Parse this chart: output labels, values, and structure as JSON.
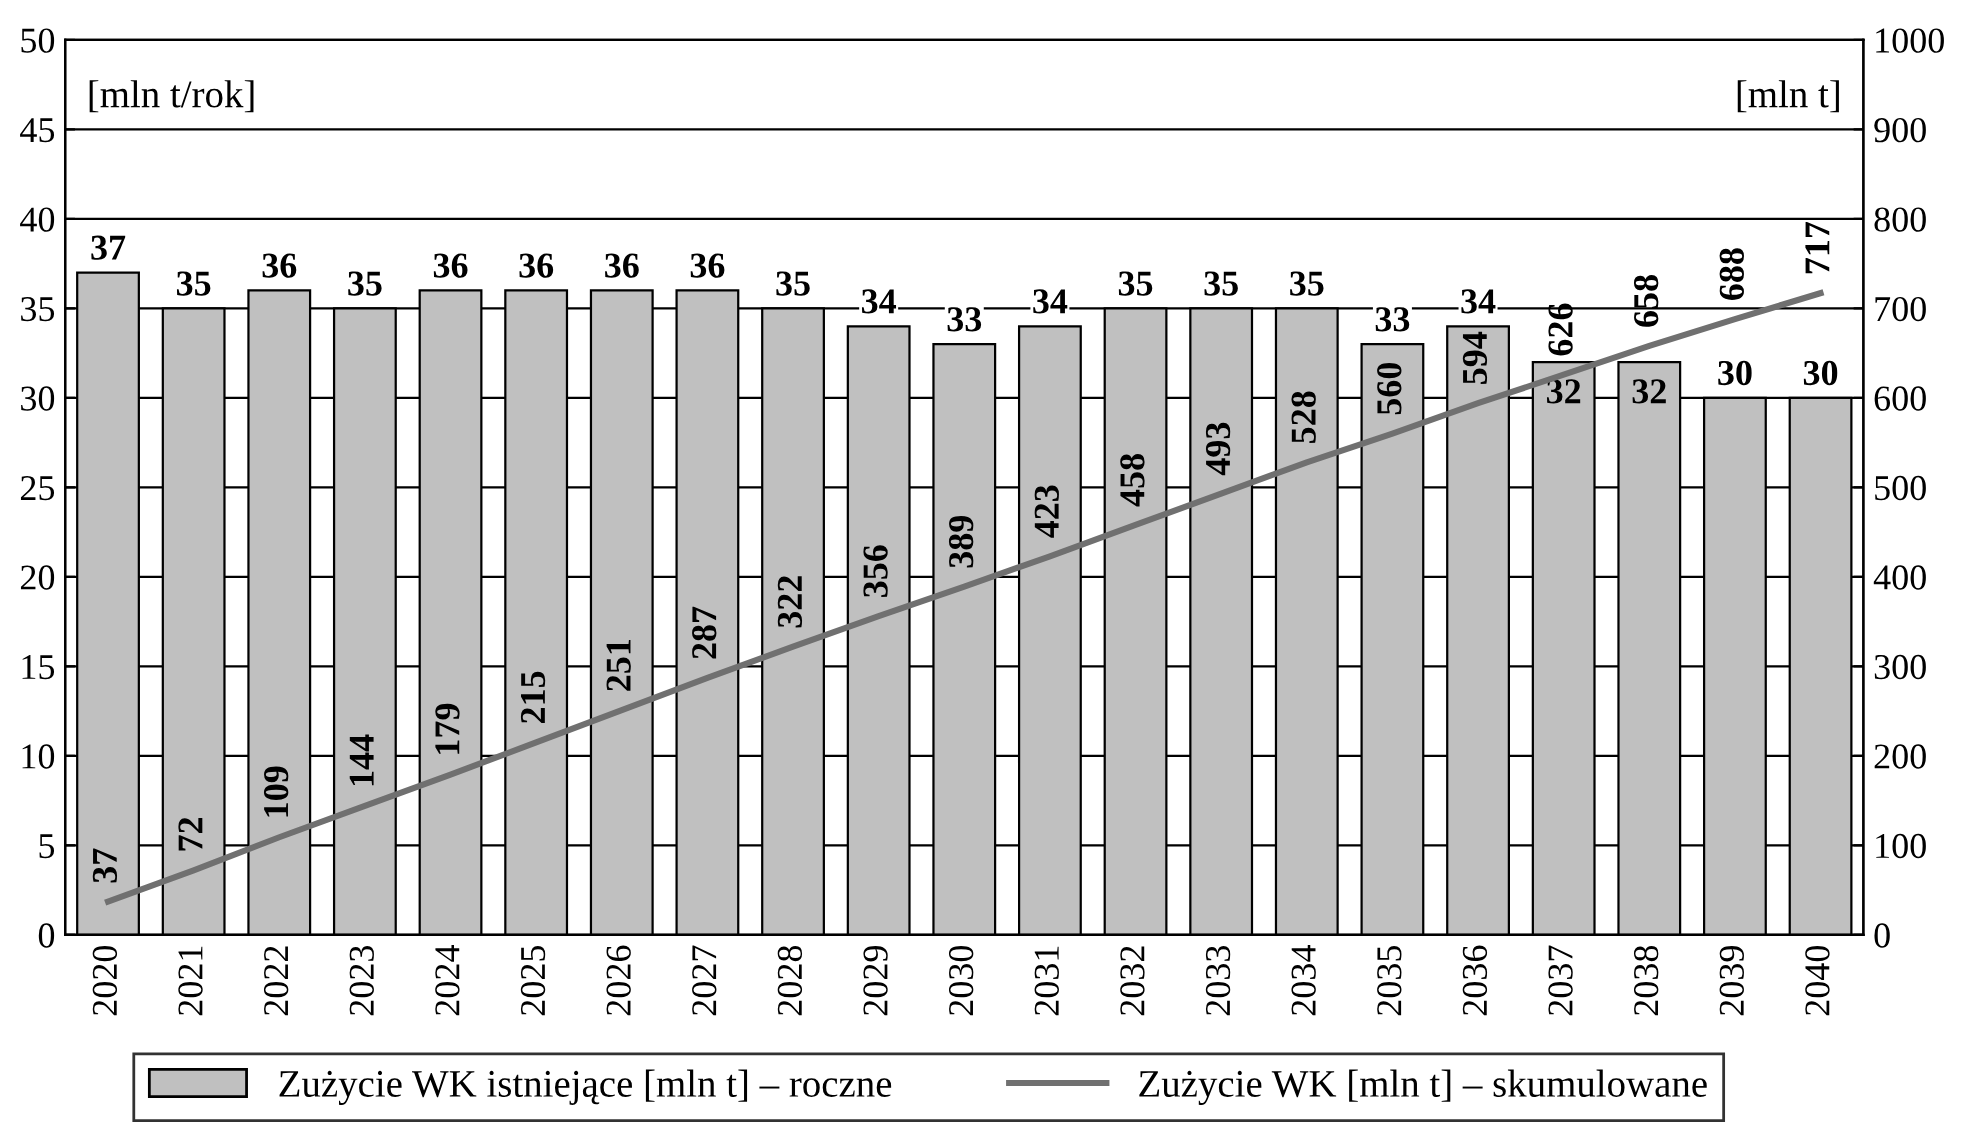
{
  "chart_data": {
    "type": "bar",
    "ylabel": "[mln t/rok]",
    "y2label": "[mln t]",
    "categories": [
      "2020",
      "2021",
      "2022",
      "2023",
      "2024",
      "2025",
      "2026",
      "2027",
      "2028",
      "2029",
      "2030",
      "2031",
      "2032",
      "2033",
      "2034",
      "2035",
      "2036",
      "2037",
      "2038",
      "2039",
      "2040"
    ],
    "series": [
      {
        "name": "Zużycie WK istniejące [mln t] – roczne",
        "color": "#c0c0c0",
        "values": [
          37,
          35,
          36,
          35,
          36,
          36,
          36,
          36,
          35,
          34,
          33,
          34,
          35,
          35,
          35,
          33,
          34,
          32,
          32,
          30,
          30
        ]
      },
      {
        "name": "Zużycie WK [mln t] – skumulowane",
        "type": "line",
        "axis": "y2",
        "color": "#707070",
        "values": [
          37,
          72,
          109,
          144,
          179,
          215,
          251,
          287,
          322,
          356,
          389,
          423,
          458,
          493,
          528,
          560,
          594,
          626,
          658,
          688,
          717
        ]
      }
    ],
    "ylim": [
      0,
      50
    ],
    "yticks": [
      0,
      5,
      10,
      15,
      20,
      25,
      30,
      35,
      40,
      45,
      50
    ],
    "y2lim": [
      0,
      1000
    ],
    "y2ticks": [
      0,
      100,
      200,
      300,
      400,
      500,
      600,
      700,
      800,
      900,
      1000
    ],
    "grid": "y",
    "legend": "bottom",
    "data_labels": true,
    "marker": "none",
    "line_style": "solid"
  }
}
